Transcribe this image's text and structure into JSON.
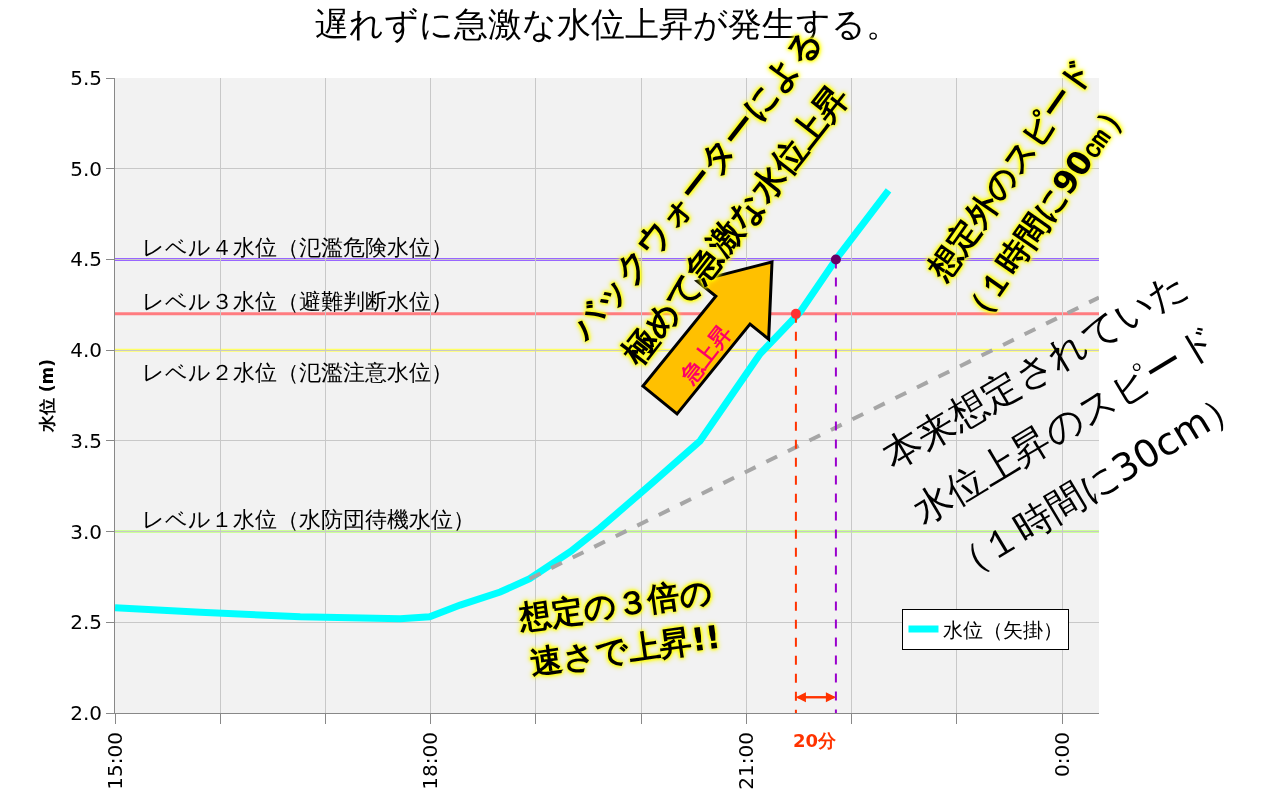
{
  "chart_data": {
    "type": "line",
    "title": "遅れずに急激な水位上昇が発生する。",
    "ylabel": "水位 (m)",
    "xlim": [
      15,
      24.35
    ],
    "xticks": [
      {
        "value": 15,
        "label": "15:00"
      },
      {
        "value": 16,
        "label": null
      },
      {
        "value": 17,
        "label": null
      },
      {
        "value": 18,
        "label": "18:00"
      },
      {
        "value": 19,
        "label": null
      },
      {
        "value": 20,
        "label": null
      },
      {
        "value": 21,
        "label": "21:00"
      },
      {
        "value": 22,
        "label": null
      },
      {
        "value": 23,
        "label": null
      },
      {
        "value": 24,
        "label": "0:00"
      }
    ],
    "ylim": [
      2.0,
      5.5
    ],
    "yticks": [
      {
        "value": 2,
        "label": "2.0"
      },
      {
        "value": 2.5,
        "label": "2.5"
      },
      {
        "value": 3,
        "label": "3.0"
      },
      {
        "value": 3.5,
        "label": "3.5"
      },
      {
        "value": 4,
        "label": "4.0"
      },
      {
        "value": 4.5,
        "label": "4.5"
      },
      {
        "value": 5,
        "label": "5.0"
      },
      {
        "value": 5.5,
        "label": "5.5"
      }
    ],
    "grid": true,
    "legend": "bottom right",
    "series": [
      {
        "name": "水位（矢掛）",
        "color": "#00ffff",
        "line_style": "solid",
        "marker": "none",
        "x": [
          15,
          15.81,
          16.76,
          17.71,
          17.99,
          18.28,
          18.66,
          18.94,
          19.33,
          19.61,
          20.09,
          20.56,
          21.13,
          21.51,
          21.85,
          22.35
        ],
        "values": [
          2.58,
          2.555,
          2.53,
          2.52,
          2.53,
          2.595,
          2.667,
          2.74,
          2.89,
          3.02,
          3.26,
          3.5,
          3.98,
          4.21,
          4.5,
          4.88
        ]
      },
      {
        "type": "line",
        "color": "#a6a6a6",
        "line_style": "dashed",
        "marker": "none",
        "x": [
          18.94,
          24.35
        ],
        "values": [
          2.74,
          4.29
        ]
      },
      {
        "type": "line",
        "color": "#ff3300",
        "line_style": "dashed",
        "marker": "none",
        "x": [
          21.47,
          21.47
        ],
        "values": [
          4.2,
          2.0
        ]
      },
      {
        "type": "line",
        "color": "#9900cc",
        "line_style": "dashed",
        "marker": "none",
        "x": [
          21.85,
          21.85
        ],
        "values": [
          4.5,
          2.0
        ]
      },
      {
        "type": "scatter",
        "color": "#ff3333",
        "marker": "circle",
        "x": [
          21.47
        ],
        "values": [
          4.2
        ]
      },
      {
        "type": "scatter",
        "color": "#660066",
        "marker": "circle",
        "x": [
          21.85
        ],
        "values": [
          4.5
        ]
      }
    ],
    "ref_lines": [
      {
        "axis": "y",
        "value": 4.5,
        "label": "レベル４水位（氾濫危険水位）",
        "color": "#9966ff"
      },
      {
        "axis": "y",
        "value": 4.2,
        "label": "レベル３水位（避難判断水位）",
        "color": "#ff7c80"
      },
      {
        "axis": "y",
        "value": 4.0,
        "label": "レベル２水位（氾濫注意水位）",
        "color": "#ffff66"
      },
      {
        "axis": "y",
        "value": 3.0,
        "label": "レベル１水位（水防団待機水位）",
        "color": "#ccff99"
      }
    ],
    "annotations": [
      "バックウォーターによる",
      "極めて急激な水位上昇",
      "想定外のスピード",
      "（１時間に90㎝）",
      "本来想定されていた",
      "水位上昇のスピード",
      "（１時間に30cm）",
      "想定の３倍の",
      "速さで上昇!!",
      "急上昇",
      "20分"
    ]
  }
}
